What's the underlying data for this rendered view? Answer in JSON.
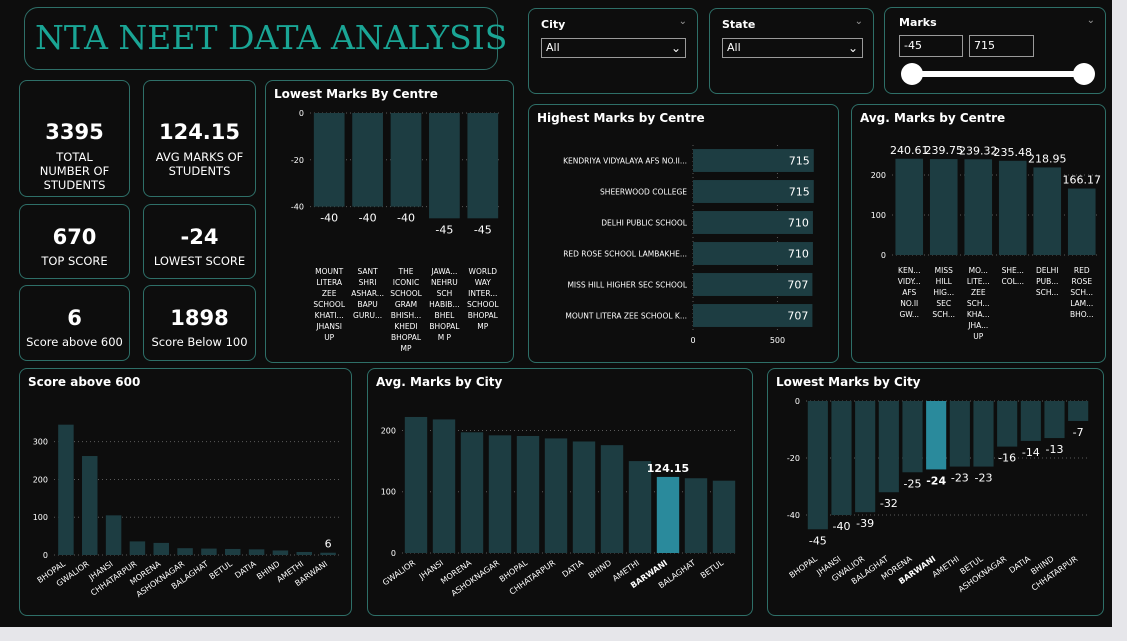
{
  "header": {
    "title": "NTA NEET DATA ANALYSIS"
  },
  "kpis": [
    {
      "value": "3395",
      "label": "TOTAL NUMBER OF STUDENTS"
    },
    {
      "value": "124.15",
      "label": "AVG MARKS OF STUDENTS"
    },
    {
      "value": "670",
      "label": "TOP SCORE"
    },
    {
      "value": "-24",
      "label": "LOWEST SCORE"
    },
    {
      "value": "6",
      "label": "Score above 600"
    },
    {
      "value": "1898",
      "label": "Score Below 100"
    }
  ],
  "slicers": {
    "city": {
      "label": "City",
      "value": "All"
    },
    "state": {
      "label": "State",
      "value": "All"
    },
    "marks": {
      "label": "Marks",
      "min": "-45",
      "max": "715"
    }
  },
  "colors": {
    "bar": "#1d3d42",
    "highlight": "#2a8a9c",
    "accent": "#1aa595",
    "border": "#2e6f68"
  },
  "chart_data": [
    {
      "id": "lowest_centre",
      "type": "bar",
      "title": "Lowest Marks By Centre",
      "categories": [
        [
          "MOUNT",
          "LITERA",
          "ZEE",
          "SCHOOL",
          "KHATI...",
          "JHANSI",
          "UP"
        ],
        [
          "SANT",
          "SHRI",
          "ASHAR...",
          "BAPU",
          "GURU..."
        ],
        [
          "THE",
          "ICONIC",
          "SCHOOL",
          "GRAM",
          "BHISH...",
          "KHEDI",
          "BHOPAL",
          "MP"
        ],
        [
          "JAWA...",
          "NEHRU",
          "SCH",
          "HABIB...",
          "BHEL",
          "BHOPAL",
          "M P"
        ],
        [
          "WORLD",
          "WAY",
          "INTER...",
          "SCHOOL",
          "BHOPAL",
          "MP"
        ]
      ],
      "values": [
        -40,
        -40,
        -40,
        -45,
        -45
      ],
      "value_labels": [
        "-40",
        "-40",
        "-40",
        "-45",
        "-45"
      ],
      "yticks": [
        {
          "v": 0,
          "t": "0"
        },
        {
          "v": -20,
          "t": "-20"
        },
        {
          "v": -40,
          "t": "-40"
        }
      ],
      "ylim": [
        -47,
        0
      ]
    },
    {
      "id": "highest_centre",
      "type": "bar",
      "orientation": "horizontal",
      "title": "Highest Marks by Centre",
      "categories": [
        "KENDRIYA VIDYALAYA AFS NO.II...",
        "SHEERWOOD COLLEGE",
        "DELHI PUBLIC SCHOOL",
        "RED ROSE SCHOOL LAMBAKHE...",
        "MISS HILL HIGHER SEC SCHOOL",
        "MOUNT LITERA ZEE SCHOOL K..."
      ],
      "values": [
        715,
        715,
        710,
        710,
        707,
        707
      ],
      "value_labels": [
        "715",
        "715",
        "710",
        "710",
        "707",
        "707"
      ],
      "xticks": [
        {
          "v": 0,
          "t": "0"
        },
        {
          "v": 500,
          "t": "500"
        }
      ],
      "xlim": [
        0,
        740
      ]
    },
    {
      "id": "avg_centre",
      "type": "bar",
      "title": "Avg. Marks by Centre",
      "categories": [
        [
          "KEN...",
          "VIDY...",
          "AFS",
          "NO.II",
          "GW..."
        ],
        [
          "MISS",
          "HILL",
          "HIG...",
          "SEC",
          "SCH..."
        ],
        [
          "MO...",
          "LITE...",
          "ZEE",
          "SCH...",
          "KHA...",
          "JHA...",
          "UP"
        ],
        [
          "SHE...",
          "COL..."
        ],
        [
          "DELHI",
          "PUB...",
          "SCH..."
        ],
        [
          "RED",
          "ROSE",
          "SCH...",
          "LAM...",
          "BHO..."
        ]
      ],
      "values": [
        240.61,
        239.75,
        239.32,
        235.48,
        218.95,
        166.17
      ],
      "value_labels": [
        "240.61",
        "239.75",
        "239.32",
        "235.48",
        "218.95",
        "166.17"
      ],
      "yticks": [
        {
          "v": 0,
          "t": "0"
        },
        {
          "v": 100,
          "t": "100"
        },
        {
          "v": 200,
          "t": "200"
        }
      ],
      "ylim": [
        0,
        270
      ]
    },
    {
      "id": "score600",
      "type": "bar",
      "title": "Score above 600",
      "categories": [
        "BHOPAL",
        "GWALIOR",
        "JHANSI",
        "CHHATARPUR",
        "MORENA",
        "ASHOKNAGAR",
        "BALAGHAT",
        "BETUL",
        "DATIA",
        "BHIND",
        "AMETHI",
        "BARWANI"
      ],
      "values": [
        345,
        262,
        105,
        36,
        32,
        18,
        17,
        16,
        15,
        12,
        8,
        6
      ],
      "labelled": {
        "11": "6"
      },
      "yticks": [
        {
          "v": 0,
          "t": "0"
        },
        {
          "v": 100,
          "t": "100"
        },
        {
          "v": 200,
          "t": "200"
        },
        {
          "v": 300,
          "t": "300"
        }
      ],
      "ylim": [
        0,
        360
      ]
    },
    {
      "id": "avg_city",
      "type": "bar",
      "title": "Avg. Marks by City",
      "categories": [
        "GWALIOR",
        "JHANSI",
        "MORENA",
        "ASHOKNAGAR",
        "BHOPAL",
        "CHHATARPUR",
        "DATIA",
        "BHIND",
        "AMETHI",
        "BARWANI",
        "BALAGHAT",
        "BETUL"
      ],
      "values": [
        222,
        218,
        197,
        192,
        191,
        187,
        182,
        176,
        150,
        124.15,
        122,
        118
      ],
      "labelled": {
        "9": "124.15"
      },
      "highlight": 9,
      "yticks": [
        {
          "v": 0,
          "t": "0"
        },
        {
          "v": 100,
          "t": "100"
        },
        {
          "v": 200,
          "t": "200"
        }
      ],
      "ylim": [
        0,
        235
      ]
    },
    {
      "id": "lowest_city",
      "type": "bar",
      "title": "Lowest Marks by City",
      "categories": [
        "BHOPAL",
        "JHANSI",
        "GWALIOR",
        "BALAGHAT",
        "MORENA",
        "BARWANI",
        "AMETHI",
        "BETUL",
        "ASHOKNAGAR",
        "DATIA",
        "BHIND",
        "CHHATARPUR"
      ],
      "values": [
        -45,
        -40,
        -39,
        -32,
        -25,
        -24,
        -23,
        -23,
        -16,
        -14,
        -13,
        -7
      ],
      "value_labels": [
        "-45",
        "-40",
        "-39",
        "-32",
        "-25",
        "-24",
        "-23",
        "-23",
        "-16",
        "-14",
        "-13",
        "-7"
      ],
      "highlight": 5,
      "yticks": [
        {
          "v": 0,
          "t": "0"
        },
        {
          "v": -20,
          "t": "-20"
        },
        {
          "v": -40,
          "t": "-40"
        }
      ],
      "ylim": [
        -47,
        0
      ]
    }
  ]
}
